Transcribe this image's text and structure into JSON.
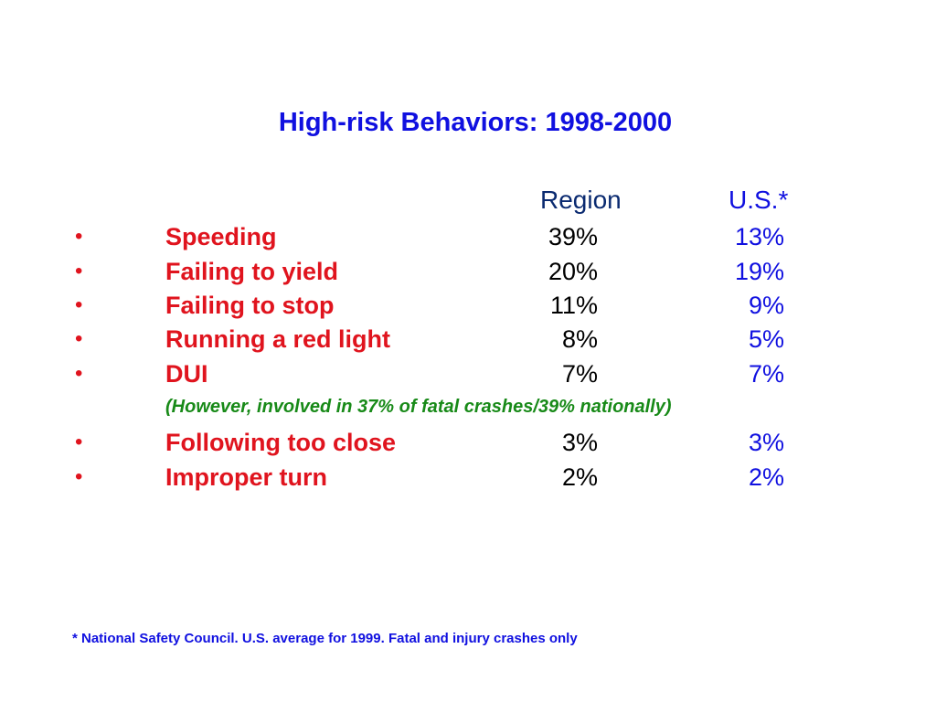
{
  "slide": {
    "title": "High-risk Behaviors: 1998-2000",
    "columns": {
      "region": "Region",
      "us": "U.S.*"
    },
    "bullet_glyph": "•",
    "rows": [
      {
        "label": "Speeding",
        "region": "39%",
        "us": "13%"
      },
      {
        "label": "Failing to yield",
        "region": "20%",
        "us": "19%"
      },
      {
        "label": "Failing to stop",
        "region": "11%",
        "us": "9%"
      },
      {
        "label": "Running a red light",
        "region": "8%",
        "us": "5%"
      },
      {
        "label": "DUI",
        "region": "7%",
        "us": "7%"
      },
      {
        "label": "Following too close",
        "region": "3%",
        "us": "3%"
      },
      {
        "label": "Improper turn",
        "region": "2%",
        "us": "2%"
      }
    ],
    "dui_note": "(However, involved in 37% of fatal crashes/39% nationally)",
    "footnote": "* National Safety Council.  U.S. average for 1999.  Fatal and injury crashes only",
    "colors": {
      "title": "#1010e0",
      "label": "#e0141e",
      "note": "#188a18",
      "region_header": "#0a2a70"
    }
  }
}
